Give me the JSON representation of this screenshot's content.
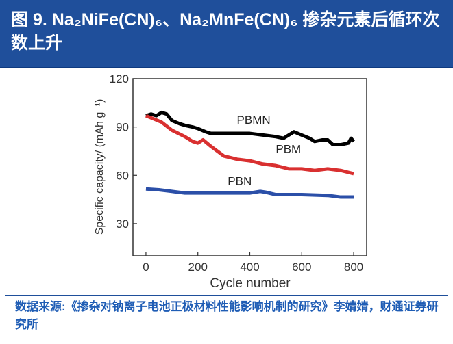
{
  "header": {
    "title": "图 9. Na₂NiFe(CN)₆、Na₂MnFe(CN)₆ 掺杂元素后循环次数上升"
  },
  "footer": {
    "source": "数据来源:《掺杂对钠离子电池正极材料性能影响机制的研究》李婧婧，财通证券研究所"
  },
  "chart_data": {
    "type": "line",
    "title": "",
    "xlabel": "Cycle number",
    "ylabel": "Specific capacity/ (mAh g⁻¹)",
    "xlim": [
      -50,
      850
    ],
    "ylim": [
      10,
      120
    ],
    "xticks": [
      0,
      200,
      400,
      600,
      800
    ],
    "yticks": [
      30,
      60,
      90,
      120
    ],
    "grid": false,
    "series": [
      {
        "name": "PBMN",
        "color": "#000000",
        "x": [
          0,
          20,
          40,
          60,
          80,
          100,
          130,
          150,
          180,
          200,
          230,
          250,
          300,
          350,
          400,
          450,
          500,
          530,
          570,
          600,
          630,
          650,
          680,
          700,
          720,
          750,
          780,
          790,
          800
        ],
        "y": [
          97,
          98,
          97,
          99,
          98,
          94,
          92,
          91,
          90,
          89,
          87,
          86,
          86,
          86,
          86,
          85,
          84,
          83,
          87,
          85,
          83,
          81,
          82,
          82,
          79,
          79,
          80,
          83,
          81
        ]
      },
      {
        "name": "PBM",
        "color": "#d93030",
        "x": [
          0,
          30,
          60,
          100,
          150,
          180,
          200,
          220,
          250,
          300,
          350,
          400,
          450,
          500,
          550,
          600,
          650,
          700,
          750,
          800
        ],
        "y": [
          97,
          95,
          93,
          88,
          84,
          81,
          80,
          82,
          78,
          72,
          70,
          69,
          67,
          66,
          64,
          64,
          63,
          64,
          63,
          61
        ]
      },
      {
        "name": "PBN",
        "color": "#2b4fa8",
        "x": [
          0,
          50,
          100,
          150,
          200,
          300,
          400,
          440,
          460,
          500,
          550,
          600,
          700,
          750,
          800
        ],
        "y": [
          51.5,
          51,
          50,
          49,
          49,
          49,
          49,
          50,
          49.5,
          48,
          48,
          48,
          47.5,
          46.5,
          46.5
        ]
      }
    ]
  }
}
